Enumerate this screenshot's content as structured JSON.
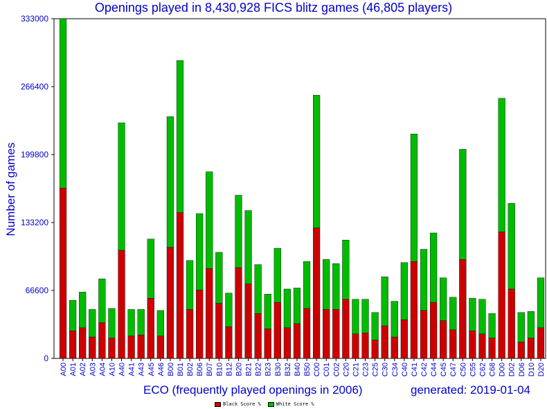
{
  "title": "Openings played in 8,430,928 FICS blitz games (46,805 players)",
  "chart_data": {
    "type": "bar",
    "stacked": true,
    "title": "Openings played in 8,430,928 FICS blitz games (46,805 players)",
    "xlabel": "ECO (frequently played openings in 2006)",
    "ylabel": "Number of games",
    "ylim": [
      0,
      333000
    ],
    "yticks": [
      "0",
      "66600",
      "133200",
      "199800",
      "266400",
      "333000"
    ],
    "grid": false,
    "legend_position": "bottom-center",
    "colors": {
      "black": "#cc0000",
      "white": "#00bb00"
    },
    "categories": [
      "A00",
      "A01",
      "A02",
      "A03",
      "A04",
      "A10",
      "A40",
      "A41",
      "A43",
      "A45",
      "A46",
      "B00",
      "B01",
      "B02",
      "B06",
      "B07",
      "B10",
      "B12",
      "B20",
      "B21",
      "B22",
      "B23",
      "B30",
      "B32",
      "B40",
      "B50",
      "C00",
      "C01",
      "C02",
      "C20",
      "C21",
      "C23",
      "C25",
      "C30",
      "C34",
      "C40",
      "C41",
      "C42",
      "C44",
      "C45",
      "C47",
      "C50",
      "C55",
      "C62",
      "C68",
      "D00",
      "D02",
      "D06",
      "D10",
      "D20"
    ],
    "series": [
      {
        "name": "Black Score %",
        "values": [
          167000,
          27000,
          30000,
          21000,
          35000,
          20000,
          106000,
          22000,
          23000,
          59000,
          22000,
          109000,
          143000,
          48000,
          67000,
          88000,
          54000,
          31000,
          89000,
          73000,
          44000,
          29000,
          55000,
          30000,
          34000,
          49000,
          128000,
          48000,
          48000,
          58000,
          24000,
          25000,
          18000,
          32000,
          21000,
          38000,
          95000,
          47000,
          55000,
          37000,
          28000,
          97000,
          27000,
          24000,
          20000,
          124000,
          68000,
          16000,
          20000,
          30000
        ]
      },
      {
        "name": "White Score %",
        "values": [
          166000,
          30000,
          35000,
          27000,
          43000,
          29000,
          125000,
          26000,
          25000,
          58000,
          25000,
          128000,
          149000,
          48000,
          75000,
          95000,
          50000,
          33000,
          71000,
          72000,
          48000,
          34000,
          53000,
          38000,
          35000,
          46000,
          130000,
          49000,
          45000,
          58000,
          34000,
          33000,
          27000,
          48000,
          35000,
          56000,
          125000,
          60000,
          68000,
          42000,
          32000,
          108000,
          32000,
          34000,
          24000,
          131000,
          84000,
          29000,
          26000,
          49000
        ]
      }
    ]
  },
  "footer": {
    "xlabel": "ECO (frequently played openings in 2006)",
    "generated": "generated: 2019-01-04"
  },
  "legend": {
    "black_label": "Black Score %",
    "white_label": "White Score %",
    "black_color": "#cc0000",
    "white_color": "#00bb00"
  }
}
